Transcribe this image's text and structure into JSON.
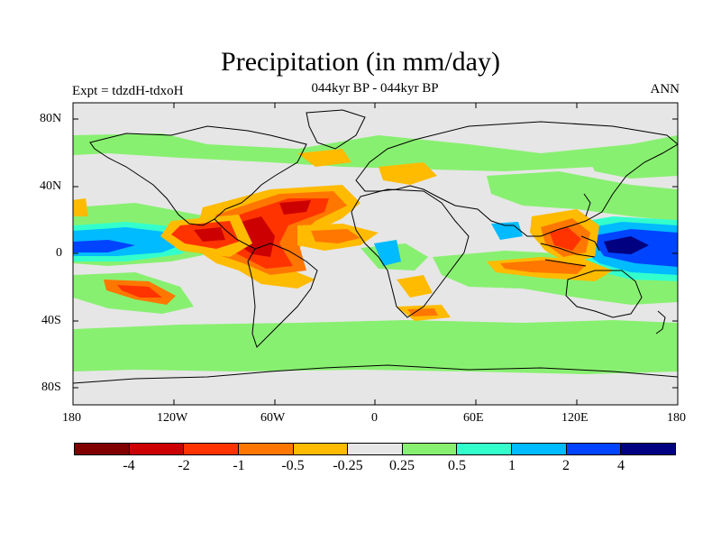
{
  "title": "Precipitation (in mm/day)",
  "subtitle": "044kyr BP - 044kyr BP",
  "left_label": "Expt = tdzdH-tdxoH",
  "right_label": "ANN",
  "lat_ticks": [
    "80N",
    "40N",
    "0",
    "40S",
    "80S"
  ],
  "lon_ticks": [
    "180",
    "120W",
    "60W",
    "0",
    "60E",
    "120E",
    "180"
  ],
  "colorbar": {
    "colors": [
      "#800000",
      "#cc0000",
      "#ff3300",
      "#ff7700",
      "#ffbb00",
      "#e6e6e6",
      "#88f070",
      "#33ffcc",
      "#00bbff",
      "#0044ff",
      "#000080"
    ],
    "labels": [
      "-4",
      "-2",
      "-1",
      "-0.5",
      "-0.25",
      "0.25",
      "0.5",
      "1",
      "2",
      "4"
    ]
  }
}
